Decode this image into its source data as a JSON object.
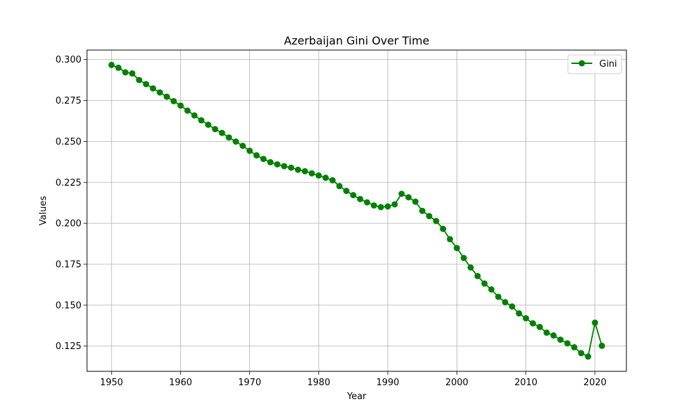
{
  "chart_data": {
    "type": "line",
    "title": "Azerbaijan Gini Over Time",
    "xlabel": "Year",
    "ylabel": "Values",
    "xlim": [
      1946.45,
      2024.55
    ],
    "ylim": [
      0.1096,
      0.3058
    ],
    "x_ticks": [
      "1950",
      "1960",
      "1970",
      "1980",
      "1990",
      "2000",
      "2010",
      "2020"
    ],
    "y_ticks": [
      "0.125",
      "0.150",
      "0.175",
      "0.200",
      "0.225",
      "0.250",
      "0.275",
      "0.300"
    ],
    "grid": true,
    "legend_position": "top-right",
    "series": [
      {
        "name": "Gini",
        "color": "#008000",
        "marker": "circle",
        "x": [
          1950,
          1951,
          1952,
          1953,
          1954,
          1955,
          1956,
          1957,
          1958,
          1959,
          1960,
          1961,
          1962,
          1963,
          1964,
          1965,
          1966,
          1967,
          1968,
          1969,
          1970,
          1971,
          1972,
          1973,
          1974,
          1975,
          1976,
          1977,
          1978,
          1979,
          1980,
          1981,
          1982,
          1983,
          1984,
          1985,
          1986,
          1987,
          1988,
          1989,
          1990,
          1991,
          1992,
          1993,
          1994,
          1995,
          1996,
          1997,
          1998,
          1999,
          2000,
          2001,
          2002,
          2003,
          2004,
          2005,
          2006,
          2007,
          2008,
          2009,
          2010,
          2011,
          2012,
          2013,
          2014,
          2015,
          2016,
          2017,
          2018,
          2019,
          2020,
          2021
        ],
        "y": [
          0.2967,
          0.295,
          0.2922,
          0.2915,
          0.2875,
          0.285,
          0.2824,
          0.2799,
          0.2773,
          0.2746,
          0.2719,
          0.2688,
          0.2659,
          0.2629,
          0.2602,
          0.2575,
          0.2552,
          0.2524,
          0.2499,
          0.2473,
          0.2443,
          0.2415,
          0.2393,
          0.2373,
          0.236,
          0.2349,
          0.234,
          0.2327,
          0.2318,
          0.2305,
          0.2292,
          0.2278,
          0.2263,
          0.2227,
          0.2198,
          0.2172,
          0.2148,
          0.2128,
          0.2109,
          0.2099,
          0.2103,
          0.2116,
          0.218,
          0.2159,
          0.2132,
          0.2076,
          0.2044,
          0.2014,
          0.1966,
          0.1903,
          0.1849,
          0.1788,
          0.173,
          0.1678,
          0.1632,
          0.1596,
          0.1551,
          0.1518,
          0.1492,
          0.145,
          0.142,
          0.1389,
          0.1367,
          0.1332,
          0.1315,
          0.1289,
          0.1267,
          0.1243,
          0.1207,
          0.1186,
          0.1393,
          0.1252
        ]
      }
    ]
  }
}
